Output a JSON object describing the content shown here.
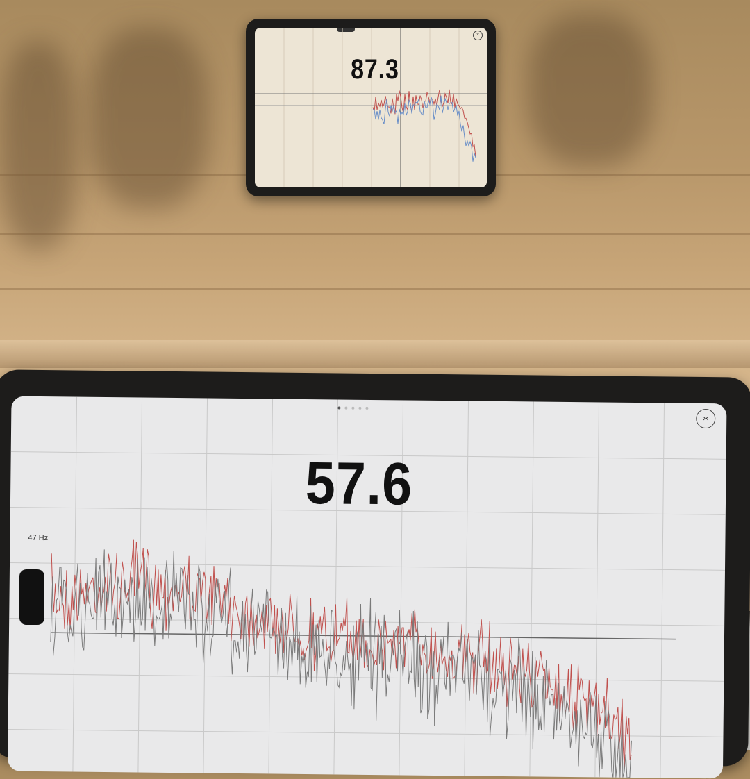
{
  "top_tablet": {
    "reading": "87.3"
  },
  "bottom_tablet": {
    "reading": "57.6",
    "frequency_label": "47 Hz"
  },
  "colors": {
    "trace_gray": "#7a7a7a",
    "trace_red": "#c0504d",
    "trace_blue": "#6a8fc8",
    "grid": "#c9c9c9"
  }
}
